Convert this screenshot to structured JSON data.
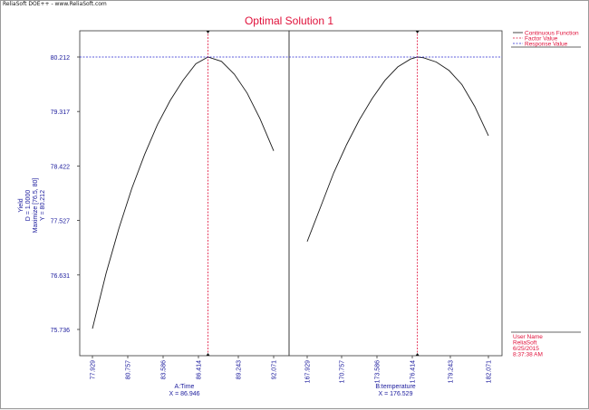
{
  "app_caption": "ReliaSoft DOE++ - www.ReliaSoft.com",
  "colors": {
    "title": "#e0103a",
    "axis_text": "#1a1a9c",
    "curve": "#1a1a1a",
    "factor_line": "#e0103a",
    "response_line": "#2a2ad0",
    "legend_text": "#e0103a",
    "frame": "#333333"
  },
  "legend": {
    "items": [
      "Continuous Function",
      "Factor Value",
      "Response Value"
    ]
  },
  "user_info": [
    "User Name",
    "ReliaSoft",
    "6/25/2015",
    "8:37:38 AM"
  ],
  "chart_data": {
    "type": "line",
    "title": "Optimal Solution 1",
    "ylabel_lines": [
      "Yield",
      "D = 1.0000",
      "Maximize [76.5, 80]",
      "Y = 80.212"
    ],
    "y_ticks": [
      "80.212",
      "79.317",
      "78.422",
      "77.527",
      "76.631",
      "75.736"
    ],
    "ylim": [
      75.736,
      80.212
    ],
    "response_value": 80.212,
    "grid": false,
    "legend_position": "right",
    "panels": [
      {
        "xlabel": "A:Time",
        "x_value_label": "X = 86.946",
        "factor_value": 86.946,
        "x_ticks": [
          "77.929",
          "80.757",
          "83.586",
          "86.414",
          "89.243",
          "92.071"
        ],
        "xlim": [
          77.929,
          92.071
        ],
        "series": {
          "x": [
            77.929,
            79.0,
            80.0,
            81.0,
            82.0,
            83.0,
            84.0,
            85.0,
            86.0,
            86.946,
            88.0,
            89.0,
            90.0,
            91.0,
            92.071
          ],
          "y": [
            75.75,
            76.66,
            77.4,
            78.05,
            78.61,
            79.1,
            79.5,
            79.83,
            80.1,
            80.212,
            80.14,
            79.93,
            79.62,
            79.2,
            78.67
          ]
        }
      },
      {
        "xlabel": "B:temperature",
        "x_value_label": "X = 176.529",
        "factor_value": 176.529,
        "x_ticks": [
          "167.929",
          "170.757",
          "173.586",
          "176.414",
          "179.243",
          "182.071"
        ],
        "xlim": [
          165.1,
          184.9
        ],
        "series": {
          "x": [
            167.929,
            169.0,
            170.0,
            171.0,
            172.0,
            173.0,
            174.0,
            175.0,
            176.0,
            176.529,
            177.0,
            178.0,
            179.0,
            180.0,
            181.0,
            182.071
          ],
          "y": [
            77.18,
            77.76,
            78.31,
            78.77,
            79.18,
            79.53,
            79.83,
            80.05,
            80.18,
            80.212,
            80.2,
            80.13,
            79.99,
            79.76,
            79.4,
            78.92
          ]
        }
      }
    ]
  }
}
